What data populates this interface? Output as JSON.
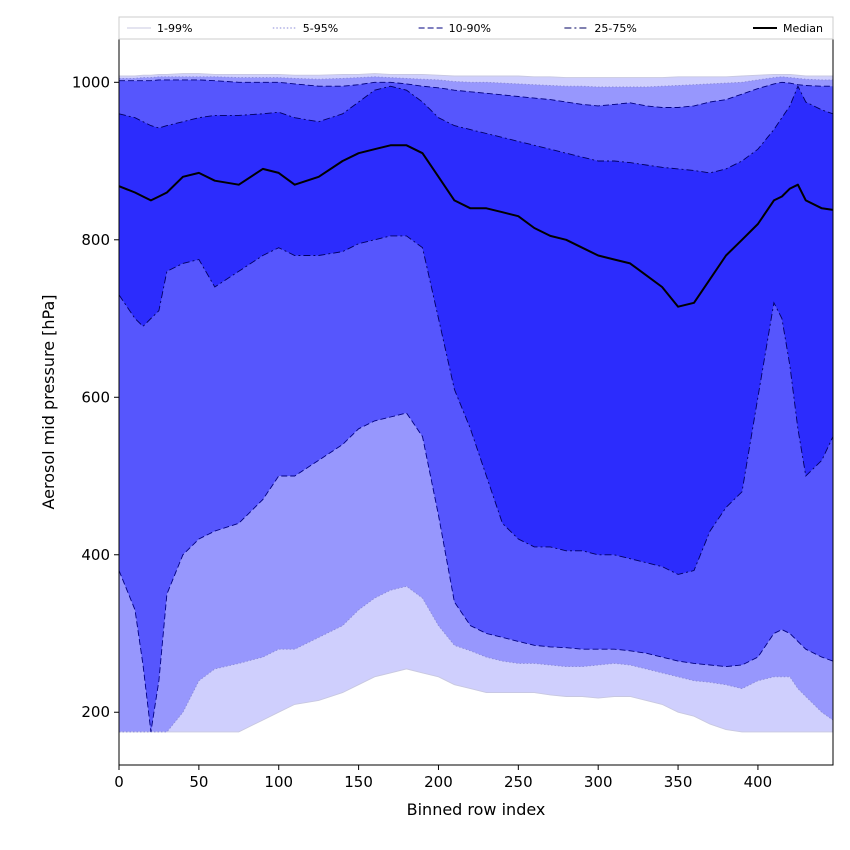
{
  "chart_data": {
    "type": "area",
    "xlabel": "Binned row index",
    "ylabel": "Aerosol mid pressure [hPa]",
    "xlim": [
      0,
      447
    ],
    "ylim": [
      133,
      1055
    ],
    "y_inverted": false,
    "x_ticks": [
      0,
      50,
      100,
      150,
      200,
      250,
      300,
      350,
      400
    ],
    "y_ticks": [
      200,
      400,
      600,
      800,
      1000
    ],
    "grid": false,
    "legend_position": "top, above plot, single row",
    "floor_value": 175,
    "x": [
      0,
      10,
      15,
      20,
      25,
      30,
      40,
      50,
      60,
      75,
      90,
      100,
      110,
      125,
      140,
      150,
      160,
      170,
      180,
      190,
      200,
      210,
      220,
      230,
      240,
      250,
      260,
      270,
      280,
      290,
      300,
      310,
      320,
      330,
      340,
      350,
      360,
      370,
      380,
      390,
      400,
      410,
      415,
      420,
      425,
      430,
      440,
      447
    ],
    "bands": [
      {
        "name": "1-99%",
        "fill": "#cfcffd",
        "line_color": "#c8c8e0",
        "line_style": "solid",
        "upper": [
          1008,
          1008,
          1009,
          1009,
          1010,
          1010,
          1011,
          1011,
          1010,
          1010,
          1010,
          1010,
          1009,
          1009,
          1010,
          1010,
          1011,
          1010,
          1010,
          1010,
          1009,
          1008,
          1008,
          1008,
          1008,
          1008,
          1007,
          1007,
          1006,
          1006,
          1006,
          1006,
          1006,
          1006,
          1006,
          1007,
          1007,
          1007,
          1007,
          1008,
          1009,
          1010,
          1010,
          1010,
          1009,
          1008,
          1008,
          1008
        ],
        "lower": [
          175,
          175,
          175,
          175,
          175,
          175,
          175,
          175,
          175,
          175,
          190,
          200,
          210,
          215,
          225,
          235,
          245,
          250,
          255,
          250,
          245,
          235,
          230,
          225,
          225,
          225,
          225,
          222,
          220,
          220,
          218,
          220,
          220,
          215,
          210,
          200,
          195,
          185,
          178,
          175,
          175,
          175,
          175,
          175,
          175,
          175,
          175,
          175
        ]
      },
      {
        "name": "5-95%",
        "fill": "#9797fd",
        "line_color": "#8a8ad8",
        "line_style": "dotted",
        "upper": [
          1005,
          1005,
          1006,
          1006,
          1007,
          1007,
          1007,
          1007,
          1007,
          1006,
          1006,
          1006,
          1005,
          1004,
          1005,
          1006,
          1007,
          1006,
          1005,
          1004,
          1003,
          1001,
          1000,
          1000,
          999,
          998,
          997,
          996,
          995,
          995,
          994,
          994,
          994,
          994,
          995,
          996,
          997,
          998,
          999,
          1000,
          1003,
          1006,
          1007,
          1006,
          1005,
          1004,
          1003,
          1003
        ],
        "lower": [
          175,
          175,
          175,
          175,
          175,
          175,
          200,
          240,
          255,
          262,
          270,
          280,
          280,
          295,
          310,
          330,
          345,
          355,
          360,
          345,
          310,
          285,
          278,
          270,
          265,
          262,
          262,
          260,
          258,
          258,
          260,
          262,
          260,
          255,
          250,
          245,
          240,
          238,
          235,
          230,
          240,
          245,
          245,
          245,
          230,
          220,
          200,
          190
        ]
      },
      {
        "name": "10-90%",
        "fill": "#5656fd",
        "line_color": "#000080",
        "line_style": "dashed",
        "upper": [
          1002,
          1002,
          1002,
          1002,
          1003,
          1003,
          1003,
          1003,
          1002,
          1000,
          1000,
          1000,
          998,
          995,
          995,
          997,
          1000,
          1000,
          998,
          995,
          993,
          990,
          988,
          986,
          984,
          982,
          980,
          978,
          975,
          972,
          970,
          972,
          974,
          970,
          968,
          968,
          970,
          975,
          978,
          985,
          992,
          998,
          1000,
          999,
          997,
          996,
          995,
          995
        ],
        "lower": [
          380,
          330,
          260,
          175,
          240,
          350,
          400,
          420,
          430,
          440,
          470,
          500,
          500,
          520,
          540,
          560,
          570,
          575,
          580,
          550,
          450,
          340,
          310,
          300,
          295,
          290,
          285,
          283,
          282,
          280,
          280,
          280,
          278,
          275,
          270,
          265,
          262,
          260,
          258,
          260,
          270,
          300,
          305,
          300,
          290,
          280,
          270,
          265
        ]
      },
      {
        "name": "25-75%",
        "fill": "#2c2cfd",
        "line_color": "#000060",
        "line_style": "dash-dot",
        "upper": [
          960,
          955,
          950,
          945,
          942,
          945,
          950,
          955,
          958,
          958,
          960,
          962,
          955,
          950,
          960,
          975,
          990,
          995,
          990,
          975,
          955,
          945,
          940,
          935,
          930,
          925,
          920,
          915,
          910,
          905,
          900,
          900,
          898,
          895,
          892,
          890,
          888,
          885,
          890,
          900,
          915,
          940,
          955,
          970,
          995,
          975,
          965,
          960
        ],
        "lower": [
          730,
          700,
          690,
          700,
          710,
          760,
          770,
          775,
          740,
          760,
          780,
          790,
          780,
          780,
          785,
          795,
          800,
          805,
          805,
          790,
          700,
          610,
          560,
          500,
          440,
          420,
          410,
          410,
          405,
          405,
          400,
          400,
          395,
          390,
          385,
          375,
          380,
          430,
          460,
          480,
          600,
          720,
          700,
          640,
          560,
          500,
          520,
          550
        ]
      }
    ],
    "series": [
      {
        "name": "Median",
        "color": "#000000",
        "values": [
          868,
          860,
          855,
          850,
          855,
          860,
          880,
          885,
          875,
          870,
          890,
          885,
          870,
          880,
          900,
          910,
          915,
          920,
          920,
          910,
          880,
          850,
          840,
          840,
          835,
          830,
          815,
          805,
          800,
          790,
          780,
          775,
          770,
          755,
          740,
          715,
          720,
          750,
          780,
          800,
          820,
          850,
          855,
          865,
          870,
          850,
          840,
          838
        ]
      }
    ]
  }
}
